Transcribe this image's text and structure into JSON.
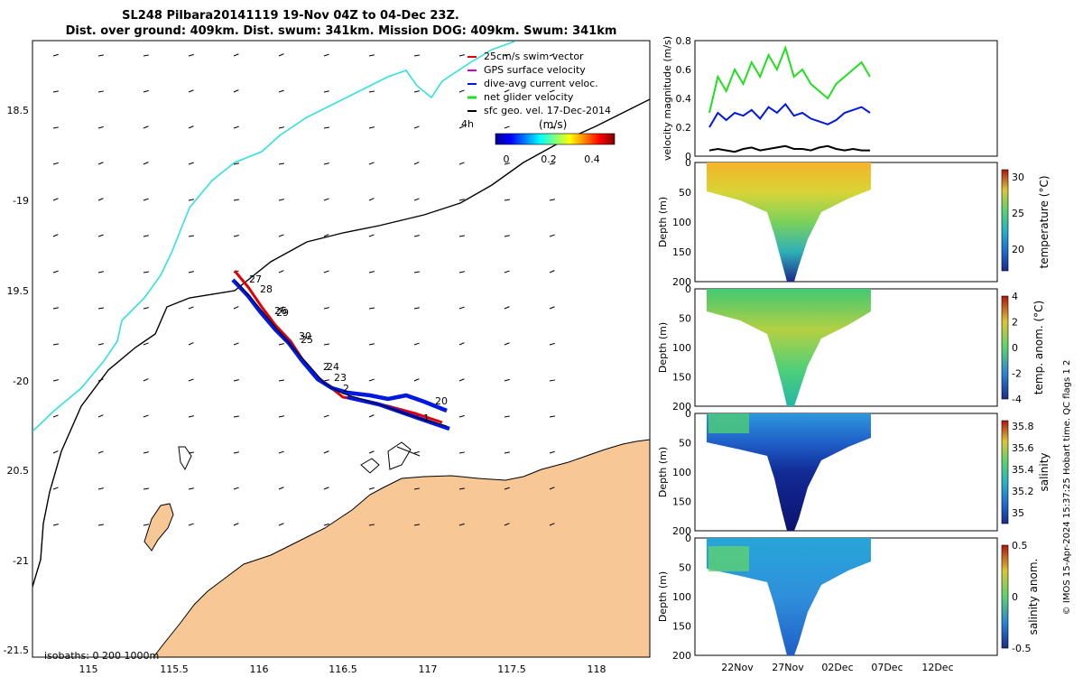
{
  "title": {
    "line1": "SL248 Pilbara20141119 19-Nov 04Z to 04-Dec 23Z.",
    "line2": "Dist. over ground: 409km. Dist. swum: 341km. Mission DOG: 409km. Swum: 341km"
  },
  "colors": {
    "coast": "#00d8d8",
    "land": "#f7c896",
    "track_red": "#e00000",
    "track_blue": "#0018e0",
    "net_green": "#22dd22",
    "gps_magenta": "#cc00cc"
  },
  "map": {
    "lon_ticks": [
      "115",
      "115.5",
      "116",
      "116.5",
      "117",
      "117.5",
      "118"
    ],
    "lat_ticks": [
      "18.5",
      "-19",
      "19.5",
      "-20",
      "20.5",
      "-21",
      "-21.5"
    ],
    "legend": [
      {
        "label": "25cm/s swim vector",
        "color": "#e00000"
      },
      {
        "label": "GPS surface velocity",
        "color": "#cc00cc"
      },
      {
        "label": "dive-avg current veloc.",
        "color": "#0018e0"
      },
      {
        "label": "net glider velocity",
        "color": "#22dd22"
      },
      {
        "label": "sfc geo. vel. 17-Dec-2014",
        "color": "#000000"
      }
    ],
    "colorbar": {
      "title": "(m/s)",
      "side_label": "4h",
      "ticks": [
        "0",
        "0.2",
        "0.4"
      ],
      "range": [
        0,
        0.5
      ]
    },
    "day_labels": [
      "27",
      "28",
      "26",
      "29",
      "30",
      "25",
      "2",
      "24",
      "23",
      "2",
      "20",
      "1"
    ],
    "isobath_label": "isobaths: 0   200  1000m"
  },
  "chart_data": [
    {
      "type": "line",
      "title": "",
      "ylabel": "velocity magnitude (m/s)",
      "xlabel": "",
      "ylim": [
        0,
        0.8
      ],
      "yticks": [
        "0",
        "0.2",
        "0.4",
        "0.6",
        "0.8"
      ],
      "series": [
        {
          "values": [
            0.3,
            0.55,
            0.45,
            0.6,
            0.5,
            0.65,
            0.55,
            0.7,
            0.6,
            0.75,
            0.55,
            0.6,
            0.5,
            0.45,
            0.4,
            0.5,
            0.55,
            0.6,
            0.65,
            0.55
          ]
        },
        {
          "values": [
            0.2,
            0.3,
            0.25,
            0.3,
            0.28,
            0.32,
            0.26,
            0.34,
            0.3,
            0.36,
            0.28,
            0.3,
            0.26,
            0.24,
            0.22,
            0.25,
            0.3,
            0.32,
            0.34,
            0.3
          ]
        },
        {
          "values": [
            0.04,
            0.05,
            0.04,
            0.03,
            0.05,
            0.06,
            0.04,
            0.05,
            0.06,
            0.07,
            0.05,
            0.05,
            0.04,
            0.06,
            0.07,
            0.05,
            0.04,
            0.05,
            0.04,
            0.04
          ]
        }
      ]
    },
    {
      "type": "heatmap",
      "ylabel": "Depth (m)",
      "colorbar_label": "temperature (°C)",
      "yticks": [
        "0",
        "50",
        "100",
        "150",
        "200"
      ],
      "color_ticks": [
        "20",
        "25",
        "30"
      ],
      "range": [
        17,
        31
      ]
    },
    {
      "type": "heatmap",
      "ylabel": "Depth (m)",
      "colorbar_label": "temp. anom. (°C)",
      "yticks": [
        "0",
        "50",
        "100",
        "150",
        "200"
      ],
      "color_ticks": [
        "-4",
        "-2",
        "0",
        "2",
        "4"
      ],
      "range": [
        -4,
        4
      ]
    },
    {
      "type": "heatmap",
      "ylabel": "Depth (m)",
      "colorbar_label": "salinity",
      "yticks": [
        "0",
        "50",
        "100",
        "150",
        "200"
      ],
      "color_ticks": [
        "35",
        "35.2",
        "35.4",
        "35.6",
        "35.8"
      ],
      "range": [
        34.9,
        35.85
      ]
    },
    {
      "type": "heatmap",
      "ylabel": "Depth (m)",
      "colorbar_label": "salinity anom.",
      "yticks": [
        "0",
        "50",
        "100",
        "150",
        "200"
      ],
      "xticks": [
        "22Nov",
        "27Nov",
        "02Dec",
        "07Dec",
        "12Dec"
      ],
      "color_ticks": [
        "-0.5",
        "0",
        "0.5"
      ],
      "range": [
        -0.5,
        0.5
      ]
    }
  ],
  "side_note": "© IMOS 15-Apr-2024 15:37:25 Hobart time. QC flags 1  2"
}
